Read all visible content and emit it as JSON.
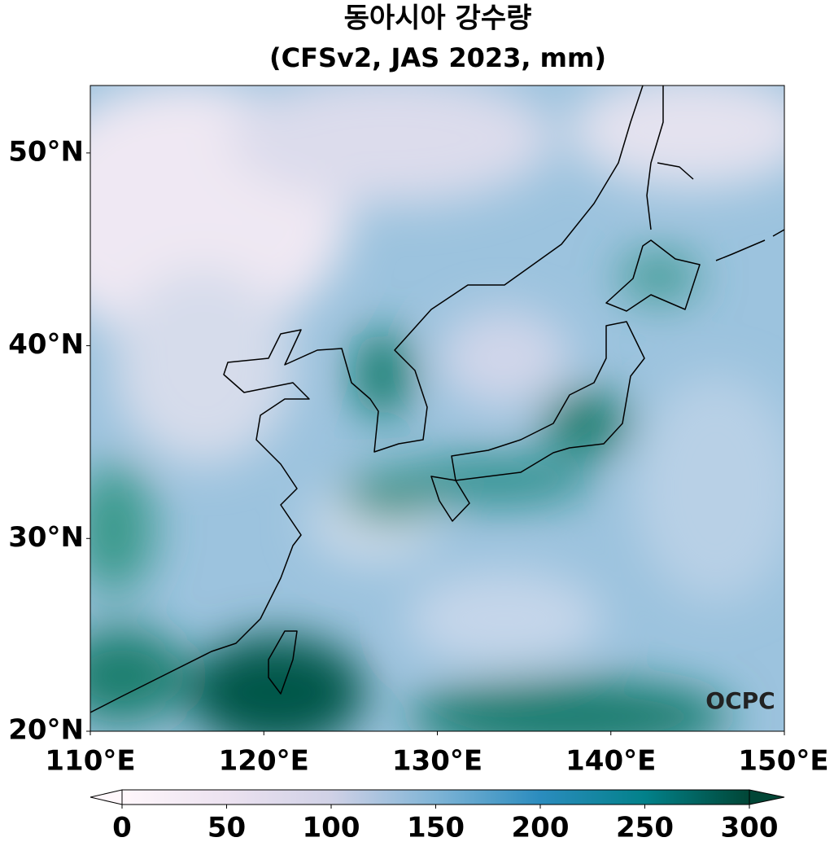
{
  "chart_data": {
    "type": "map",
    "title": "동아시아 강수량",
    "subtitle": "(CFSv2, JAS 2023, mm)",
    "xlim": [
      110,
      150
    ],
    "ylim": [
      20,
      53.5
    ],
    "xticks": [
      {
        "value": 110,
        "label": "110°E"
      },
      {
        "value": 120,
        "label": "120°E"
      },
      {
        "value": 130,
        "label": "130°E"
      },
      {
        "value": 140,
        "label": "140°E"
      },
      {
        "value": 150,
        "label": "150°E"
      }
    ],
    "yticks": [
      {
        "value": 20,
        "label": "20°N"
      },
      {
        "value": 30,
        "label": "30°N"
      },
      {
        "value": 40,
        "label": "40°N"
      },
      {
        "value": 50,
        "label": "50°N"
      }
    ],
    "colorbar": {
      "lim": [
        0,
        300
      ],
      "ticks": [
        0,
        50,
        100,
        150,
        200,
        250,
        300
      ],
      "colors": [
        "#fff7fb",
        "#ece2f0",
        "#d0d1e6",
        "#7fb4d6",
        "#2b8cbe",
        "#02818a",
        "#014636"
      ]
    },
    "watermark": "OCPC"
  }
}
